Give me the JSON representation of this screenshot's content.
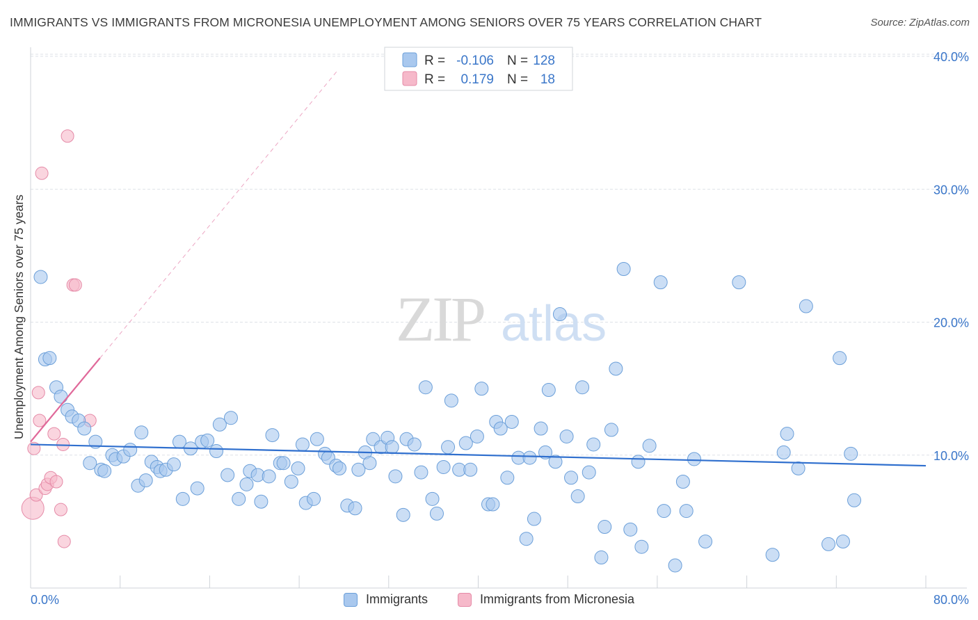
{
  "title": "IMMIGRANTS VS IMMIGRANTS FROM MICRONESIA UNEMPLOYMENT AMONG SENIORS OVER 75 YEARS CORRELATION CHART",
  "source": "Source: ZipAtlas.com",
  "watermark": {
    "zip": "ZIP",
    "atlas": "atlas"
  },
  "colors": {
    "blue_fill": "#a9c8ee",
    "blue_stroke": "#6b9fd9",
    "blue_line": "#2f6fce",
    "pink_fill": "#f6b9ca",
    "pink_stroke": "#e58aa7",
    "pink_line": "#e0699a",
    "axis_text": "#3a76c9",
    "grid": "#dde1e7"
  },
  "stats_legend": {
    "rows": [
      {
        "series": "blue",
        "r_label": "R =",
        "r_value": "-0.106",
        "n_label": "N =",
        "n_value": "128"
      },
      {
        "series": "pink",
        "r_label": "R =",
        "r_value": "0.179",
        "n_label": "N =",
        "n_value": "18"
      }
    ]
  },
  "chart_data": {
    "type": "scatter",
    "xlabel": "",
    "ylabel": "Unemployment Among Seniors over 75 years",
    "xlim": [
      0,
      80
    ],
    "ylim": [
      0,
      43
    ],
    "x_tick_labels": [
      "0.0%",
      "80.0%"
    ],
    "y_ticks": [
      10,
      20,
      30,
      40
    ],
    "y_tick_labels": [
      "10.0%",
      "20.0%",
      "30.0%",
      "40.0%"
    ],
    "grid": true,
    "legend_placement": "bottom",
    "series": [
      {
        "name": "Immigrants",
        "color": "#a9c8ee",
        "trend": {
          "x": [
            0,
            80
          ],
          "y": [
            10.8,
            9.2
          ]
        },
        "points": [
          [
            0.9,
            23.4
          ],
          [
            1.3,
            17.2
          ],
          [
            1.7,
            17.3
          ],
          [
            2.3,
            15.1
          ],
          [
            2.7,
            14.4
          ],
          [
            3.3,
            13.4
          ],
          [
            3.7,
            12.9
          ],
          [
            4.3,
            12.6
          ],
          [
            4.8,
            12.0
          ],
          [
            5.8,
            11.0
          ],
          [
            5.3,
            9.4
          ],
          [
            6.3,
            8.9
          ],
          [
            6.6,
            8.8
          ],
          [
            7.3,
            10.0
          ],
          [
            7.6,
            9.7
          ],
          [
            8.3,
            9.9
          ],
          [
            8.9,
            10.4
          ],
          [
            9.6,
            7.7
          ],
          [
            9.9,
            11.7
          ],
          [
            10.3,
            8.1
          ],
          [
            10.8,
            9.5
          ],
          [
            11.3,
            9.1
          ],
          [
            11.6,
            8.8
          ],
          [
            12.1,
            8.9
          ],
          [
            12.8,
            9.3
          ],
          [
            13.3,
            11.0
          ],
          [
            13.6,
            6.7
          ],
          [
            14.3,
            10.5
          ],
          [
            14.9,
            7.5
          ],
          [
            15.3,
            11.0
          ],
          [
            15.8,
            11.1
          ],
          [
            16.6,
            10.3
          ],
          [
            16.9,
            12.3
          ],
          [
            17.6,
            8.5
          ],
          [
            17.9,
            12.8
          ],
          [
            18.6,
            6.7
          ],
          [
            19.3,
            7.8
          ],
          [
            19.6,
            8.8
          ],
          [
            20.3,
            8.5
          ],
          [
            20.6,
            6.5
          ],
          [
            21.3,
            8.4
          ],
          [
            21.6,
            11.5
          ],
          [
            22.3,
            9.4
          ],
          [
            22.6,
            9.4
          ],
          [
            23.3,
            8.0
          ],
          [
            23.9,
            9.0
          ],
          [
            24.3,
            10.8
          ],
          [
            24.6,
            6.4
          ],
          [
            25.3,
            6.7
          ],
          [
            25.6,
            11.2
          ],
          [
            26.3,
            10.1
          ],
          [
            26.6,
            9.8
          ],
          [
            27.3,
            9.2
          ],
          [
            27.6,
            9.0
          ],
          [
            28.3,
            6.2
          ],
          [
            29.0,
            6.0
          ],
          [
            29.3,
            8.9
          ],
          [
            29.9,
            10.2
          ],
          [
            30.3,
            9.4
          ],
          [
            30.6,
            11.2
          ],
          [
            31.3,
            10.6
          ],
          [
            31.9,
            11.3
          ],
          [
            32.3,
            10.6
          ],
          [
            32.6,
            8.4
          ],
          [
            33.3,
            5.5
          ],
          [
            33.6,
            11.2
          ],
          [
            34.3,
            10.8
          ],
          [
            34.9,
            8.7
          ],
          [
            35.3,
            15.1
          ],
          [
            35.9,
            6.7
          ],
          [
            36.3,
            5.6
          ],
          [
            36.9,
            9.1
          ],
          [
            37.3,
            10.6
          ],
          [
            37.6,
            14.1
          ],
          [
            38.3,
            8.9
          ],
          [
            38.9,
            10.9
          ],
          [
            39.3,
            8.9
          ],
          [
            39.9,
            11.4
          ],
          [
            40.3,
            15.0
          ],
          [
            40.9,
            6.3
          ],
          [
            41.3,
            6.3
          ],
          [
            41.6,
            12.5
          ],
          [
            42.0,
            12.0
          ],
          [
            42.6,
            8.3
          ],
          [
            43.0,
            12.5
          ],
          [
            43.6,
            9.8
          ],
          [
            44.3,
            3.7
          ],
          [
            44.6,
            9.8
          ],
          [
            45.0,
            5.2
          ],
          [
            45.6,
            12.0
          ],
          [
            46.0,
            10.2
          ],
          [
            46.3,
            14.9
          ],
          [
            46.9,
            9.5
          ],
          [
            47.3,
            20.6
          ],
          [
            47.9,
            11.4
          ],
          [
            48.3,
            8.3
          ],
          [
            48.9,
            6.9
          ],
          [
            49.3,
            15.1
          ],
          [
            49.9,
            8.7
          ],
          [
            50.3,
            10.8
          ],
          [
            51.0,
            2.3
          ],
          [
            51.3,
            4.6
          ],
          [
            51.9,
            11.9
          ],
          [
            52.3,
            16.5
          ],
          [
            53.0,
            24.0
          ],
          [
            53.6,
            4.4
          ],
          [
            54.3,
            9.5
          ],
          [
            54.6,
            3.1
          ],
          [
            55.3,
            10.7
          ],
          [
            56.3,
            23.0
          ],
          [
            56.6,
            5.8
          ],
          [
            57.6,
            1.7
          ],
          [
            58.3,
            8.0
          ],
          [
            58.6,
            5.8
          ],
          [
            59.3,
            9.7
          ],
          [
            60.3,
            3.5
          ],
          [
            63.3,
            23.0
          ],
          [
            66.3,
            2.5
          ],
          [
            67.3,
            10.2
          ],
          [
            67.6,
            11.6
          ],
          [
            68.6,
            9.0
          ],
          [
            69.3,
            21.2
          ],
          [
            71.3,
            3.3
          ],
          [
            72.3,
            17.3
          ],
          [
            72.6,
            3.5
          ],
          [
            73.3,
            10.1
          ],
          [
            73.6,
            6.6
          ]
        ]
      },
      {
        "name": "Immigrants from Micronesia",
        "color": "#f6b9ca",
        "trend": {
          "x": [
            0,
            6.2
          ],
          "y": [
            11.0,
            17.3
          ],
          "dashed_x_end": 27.5,
          "dashed_y_end": 39.0
        },
        "points": [
          [
            0.2,
            6.0
          ],
          [
            0.3,
            10.5
          ],
          [
            0.5,
            7.0
          ],
          [
            0.7,
            14.7
          ],
          [
            0.8,
            12.6
          ],
          [
            1.0,
            31.2
          ],
          [
            1.3,
            7.5
          ],
          [
            1.5,
            7.8
          ],
          [
            1.8,
            8.3
          ],
          [
            2.1,
            11.6
          ],
          [
            2.3,
            8.0
          ],
          [
            2.7,
            5.9
          ],
          [
            2.9,
            10.8
          ],
          [
            3.0,
            3.5
          ],
          [
            3.3,
            34.0
          ],
          [
            3.8,
            22.8
          ],
          [
            4.0,
            22.8
          ],
          [
            5.3,
            12.6
          ]
        ]
      }
    ]
  },
  "bottom_legend": {
    "items": [
      {
        "label": "Immigrants",
        "series": "blue"
      },
      {
        "label": "Immigrants from Micronesia",
        "series": "pink"
      }
    ]
  }
}
